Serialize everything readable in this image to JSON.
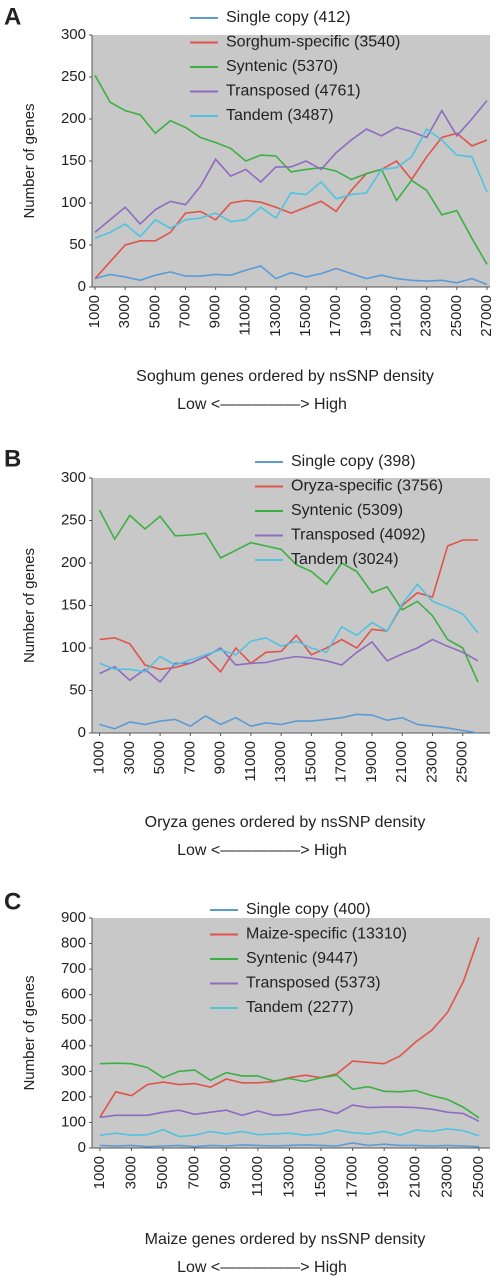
{
  "chart_data": [
    {
      "type": "line",
      "label": "A",
      "xlabel": "Soghum genes ordered by nsSNP density",
      "xsublabel": "Low <—————> High",
      "ylabel": "Number of genes",
      "x": [
        1000,
        2000,
        3000,
        4000,
        5000,
        6000,
        7000,
        8000,
        9000,
        10000,
        11000,
        12000,
        13000,
        14000,
        15000,
        16000,
        17000,
        18000,
        19000,
        20000,
        21000,
        22000,
        23000,
        24000,
        25000,
        26000,
        27000
      ],
      "xlim": [
        800,
        27200
      ],
      "xticks": [
        1000,
        3000,
        5000,
        7000,
        9000,
        11000,
        13000,
        15000,
        17000,
        19000,
        21000,
        23000,
        25000,
        27000
      ],
      "ylim": [
        0,
        300
      ],
      "yticks": [
        0,
        50,
        100,
        150,
        200,
        250,
        300
      ],
      "grid": false,
      "series": [
        {
          "name": "Single copy (412)",
          "color": "#5b9bd5",
          "values": [
            10,
            15,
            12,
            8,
            14,
            18,
            13,
            13,
            15,
            14,
            20,
            25,
            10,
            17,
            12,
            16,
            22,
            16,
            10,
            14,
            10,
            8,
            7,
            8,
            5,
            10,
            3
          ]
        },
        {
          "name": "Sorghum-specific (3540)",
          "color": "#e0534a",
          "values": [
            10,
            30,
            50,
            55,
            55,
            65,
            88,
            90,
            80,
            100,
            103,
            101,
            95,
            88,
            95,
            102,
            90,
            115,
            135,
            140,
            150,
            128,
            155,
            178,
            183,
            168,
            175
          ]
        },
        {
          "name": "Syntenic (5370)",
          "color": "#3cb043",
          "values": [
            252,
            220,
            210,
            205,
            183,
            198,
            190,
            178,
            172,
            165,
            150,
            157,
            156,
            137,
            140,
            142,
            138,
            128,
            135,
            140,
            103,
            127,
            115,
            86,
            91,
            58,
            27
          ]
        },
        {
          "name": "Transposed (4761)",
          "color": "#8e6bbf",
          "values": [
            65,
            80,
            95,
            75,
            92,
            102,
            98,
            120,
            152,
            132,
            140,
            125,
            143,
            143,
            150,
            140,
            160,
            175,
            188,
            180,
            190,
            185,
            178,
            210,
            180,
            200,
            222
          ]
        },
        {
          "name": "Tandem (3487)",
          "color": "#4fc3e0",
          "values": [
            58,
            65,
            75,
            60,
            80,
            70,
            80,
            82,
            88,
            78,
            80,
            95,
            82,
            112,
            110,
            125,
            105,
            110,
            112,
            140,
            142,
            155,
            188,
            175,
            157,
            155,
            113
          ]
        }
      ]
    },
    {
      "type": "line",
      "label": "B",
      "xlabel": "Oryza genes ordered by nsSNP density",
      "xsublabel": "Low <—————> High",
      "ylabel": "Number of genes",
      "x": [
        1000,
        2000,
        3000,
        4000,
        5000,
        6000,
        7000,
        8000,
        9000,
        10000,
        11000,
        12000,
        13000,
        14000,
        15000,
        16000,
        17000,
        18000,
        19000,
        20000,
        21000,
        22000,
        23000,
        24000,
        25000,
        26000
      ],
      "xlim": [
        500,
        26800
      ],
      "xticks": [
        1000,
        3000,
        5000,
        7000,
        9000,
        11000,
        13000,
        15000,
        17000,
        19000,
        21000,
        23000,
        25000
      ],
      "ylim": [
        0,
        300
      ],
      "yticks": [
        0,
        50,
        100,
        150,
        200,
        250,
        300
      ],
      "grid": false,
      "series": [
        {
          "name": "Single copy (398)",
          "color": "#5b9bd5",
          "values": [
            10,
            5,
            13,
            10,
            14,
            16,
            8,
            20,
            10,
            18,
            8,
            12,
            10,
            14,
            14,
            16,
            18,
            22,
            21,
            15,
            18,
            10,
            8,
            6,
            3,
            0
          ]
        },
        {
          "name": "Oryza-specific (3756)",
          "color": "#e0534a",
          "values": [
            110,
            112,
            105,
            80,
            75,
            77,
            82,
            90,
            72,
            100,
            82,
            95,
            96,
            115,
            92,
            100,
            110,
            100,
            122,
            120,
            150,
            165,
            160,
            220,
            227,
            227
          ]
        },
        {
          "name": "Syntenic (5309)",
          "color": "#3cb043",
          "values": [
            262,
            228,
            256,
            240,
            255,
            232,
            233,
            235,
            206,
            215,
            224,
            220,
            216,
            198,
            190,
            175,
            200,
            190,
            165,
            172,
            145,
            155,
            138,
            110,
            100,
            60
          ]
        },
        {
          "name": "Transposed (4092)",
          "color": "#8e6bbf",
          "values": [
            70,
            78,
            62,
            75,
            60,
            82,
            82,
            90,
            100,
            80,
            82,
            83,
            87,
            90,
            88,
            85,
            80,
            95,
            107,
            85,
            93,
            100,
            110,
            102,
            95,
            85
          ]
        },
        {
          "name": "Tandem (3024)",
          "color": "#4fc3e0",
          "values": [
            82,
            75,
            75,
            72,
            90,
            80,
            86,
            92,
            98,
            92,
            108,
            112,
            102,
            108,
            100,
            95,
            125,
            115,
            130,
            120,
            152,
            175,
            155,
            148,
            140,
            118
          ]
        }
      ]
    },
    {
      "type": "line",
      "label": "C",
      "xlabel": "Maize genes ordered by nsSNP density",
      "xsublabel": "Low <—————> High",
      "ylabel": "Number of genes",
      "x": [
        1000,
        2000,
        3000,
        4000,
        5000,
        6000,
        7000,
        8000,
        9000,
        10000,
        11000,
        12000,
        13000,
        14000,
        15000,
        16000,
        17000,
        18000,
        19000,
        20000,
        21000,
        22000,
        23000,
        24000,
        25000
      ],
      "xlim": [
        500,
        25700
      ],
      "xticks": [
        1000,
        3000,
        5000,
        7000,
        9000,
        11000,
        13000,
        15000,
        17000,
        19000,
        21000,
        23000,
        25000
      ],
      "ylim": [
        0,
        900
      ],
      "yticks": [
        0,
        100,
        200,
        300,
        400,
        500,
        600,
        700,
        800,
        900
      ],
      "grid": false,
      "series": [
        {
          "name": "Single copy (400)",
          "color": "#5b9bd5",
          "values": [
            10,
            8,
            10,
            5,
            8,
            10,
            5,
            10,
            8,
            12,
            10,
            8,
            10,
            12,
            10,
            8,
            20,
            10,
            15,
            10,
            10,
            8,
            10,
            8,
            5
          ]
        },
        {
          "name": "Maize-specific (13310)",
          "color": "#e0534a",
          "values": [
            120,
            220,
            205,
            248,
            258,
            248,
            252,
            238,
            270,
            255,
            255,
            260,
            275,
            285,
            275,
            290,
            340,
            335,
            330,
            360,
            415,
            460,
            530,
            650,
            825
          ]
        },
        {
          "name": "Syntenic (9447)",
          "color": "#3cb043",
          "values": [
            330,
            332,
            330,
            315,
            275,
            300,
            305,
            265,
            295,
            282,
            282,
            262,
            272,
            260,
            275,
            285,
            230,
            240,
            222,
            220,
            225,
            205,
            190,
            160,
            118
          ]
        },
        {
          "name": "Transposed (5373)",
          "color": "#8e6bbf",
          "values": [
            120,
            128,
            128,
            128,
            140,
            148,
            132,
            140,
            148,
            128,
            145,
            128,
            132,
            145,
            152,
            135,
            168,
            158,
            160,
            160,
            158,
            152,
            140,
            135,
            105
          ]
        },
        {
          "name": "Tandem (2277)",
          "color": "#4fc3e0",
          "values": [
            50,
            58,
            50,
            52,
            72,
            45,
            50,
            65,
            55,
            65,
            52,
            55,
            58,
            50,
            55,
            70,
            60,
            55,
            65,
            50,
            70,
            65,
            75,
            68,
            48
          ]
        }
      ]
    }
  ]
}
